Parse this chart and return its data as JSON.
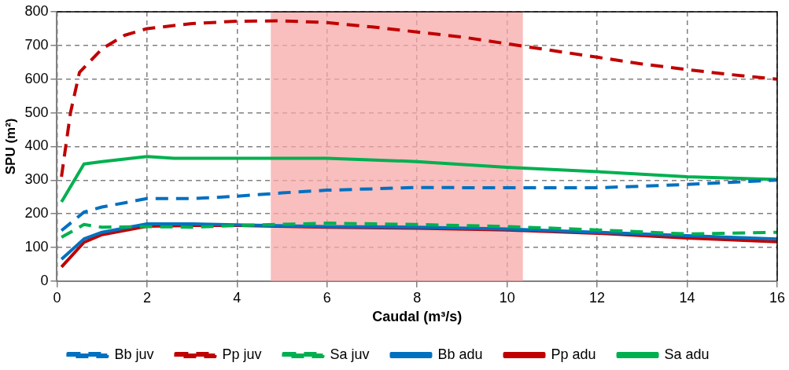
{
  "chart_data": {
    "type": "line",
    "xlabel": "Caudal (m³/s)",
    "ylabel": "SPU (m²)",
    "xlim": [
      0,
      16
    ],
    "xticks": [
      0,
      2,
      4,
      6,
      8,
      10,
      12,
      14,
      16
    ],
    "ylim": [
      0,
      800
    ],
    "yticks": [
      0,
      100,
      200,
      300,
      400,
      500,
      600,
      700,
      800
    ],
    "grid": true,
    "legend": "bottom",
    "marker": "none",
    "bands": [
      {
        "axis": "x",
        "from": 4.75,
        "to": 10.35,
        "color": "#f7a8a8"
      }
    ],
    "series": [
      {
        "name": "Bb juv",
        "color": "#0070c0",
        "line_style": "dashed",
        "x": [
          0.1,
          0.6,
          1,
          2,
          3,
          4,
          5,
          6,
          8,
          10,
          12,
          14,
          16
        ],
        "values": [
          150,
          205,
          220,
          245,
          245,
          252,
          262,
          270,
          278,
          277,
          277,
          287,
          300
        ]
      },
      {
        "name": "Pp juv",
        "color": "#c00000",
        "line_style": "dashed",
        "x": [
          0.1,
          0.3,
          0.5,
          1,
          1.5,
          2,
          3,
          4,
          5,
          6,
          7,
          8,
          9,
          10,
          11,
          12,
          13,
          14,
          15,
          16
        ],
        "values": [
          310,
          500,
          620,
          690,
          730,
          750,
          765,
          772,
          773,
          768,
          755,
          740,
          725,
          705,
          685,
          665,
          645,
          628,
          613,
          600
        ]
      },
      {
        "name": "Sa juv",
        "color": "#00b050",
        "line_style": "dashed",
        "x": [
          0.1,
          0.6,
          1,
          2,
          3,
          4,
          6,
          8,
          10,
          12,
          14,
          16
        ],
        "values": [
          130,
          168,
          160,
          162,
          160,
          165,
          172,
          168,
          162,
          152,
          140,
          145
        ]
      },
      {
        "name": "Bb adu",
        "color": "#0070c0",
        "line_style": "solid",
        "x": [
          0.1,
          0.6,
          1,
          2,
          3,
          4,
          6,
          8,
          10,
          12,
          14,
          16
        ],
        "values": [
          65,
          125,
          145,
          170,
          170,
          167,
          162,
          160,
          155,
          145,
          135,
          125
        ]
      },
      {
        "name": "Pp adu",
        "color": "#c00000",
        "line_style": "solid",
        "x": [
          0.1,
          0.6,
          1,
          2,
          3,
          4,
          6,
          8,
          10,
          12,
          14,
          16
        ],
        "values": [
          42,
          115,
          138,
          163,
          165,
          165,
          160,
          157,
          152,
          142,
          128,
          117
        ]
      },
      {
        "name": "Sa adu",
        "color": "#00b050",
        "line_style": "solid",
        "x": [
          0.1,
          0.6,
          1,
          2,
          2.6,
          4,
          6,
          8,
          10,
          12,
          14,
          16
        ],
        "values": [
          235,
          348,
          355,
          370,
          365,
          365,
          365,
          355,
          338,
          325,
          310,
          302
        ]
      }
    ]
  }
}
